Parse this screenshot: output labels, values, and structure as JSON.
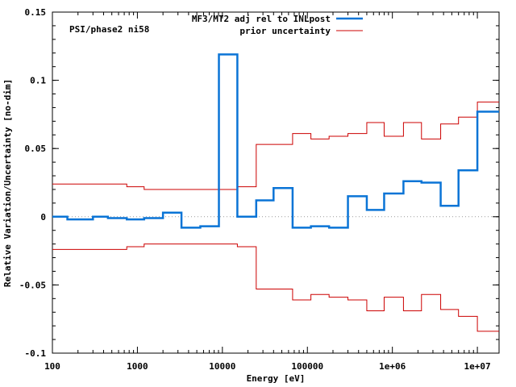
{
  "chart_data": {
    "type": "line",
    "step": true,
    "xscale": "log",
    "xlim": [
      100,
      18000000
    ],
    "ylim": [
      -0.1,
      0.15
    ],
    "xlabel": "Energy [eV]",
    "ylabel": "Relative Variation/Uncertainty [no-dim]",
    "annotation": "PSI/phase2 ni58",
    "x_tick_values": [
      100,
      1000,
      10000,
      100000,
      1000000,
      10000000
    ],
    "x_tick_labels": [
      "100",
      "1000",
      "10000",
      "100000",
      "1e+06",
      "1e+07"
    ],
    "y_tick_values": [
      -0.1,
      -0.05,
      0,
      0.05,
      0.1,
      0.15
    ],
    "y_tick_labels": [
      "-0.1",
      "-0.05",
      "0",
      "0.05",
      "0.1",
      "0.15"
    ],
    "zero_line": true,
    "legend_position": "top",
    "series": [
      {
        "name": "MF3/MT2 adj rel to INLpost",
        "color": "#0a74d6",
        "edges": [
          100,
          150,
          300,
          450,
          750,
          1200,
          2000,
          3300,
          5500,
          9100,
          15000,
          25000,
          40000,
          67000,
          110000,
          180000,
          300000,
          500000,
          800000,
          1350000,
          2200000,
          3700000,
          6000000,
          10000000,
          18000000
        ],
        "values": [
          0,
          -0.002,
          0,
          -0.001,
          -0.002,
          -0.001,
          0.003,
          -0.008,
          -0.007,
          0.119,
          0,
          0.012,
          0.021,
          -0.008,
          -0.007,
          -0.008,
          0.015,
          0.005,
          0.017,
          0.026,
          0.025,
          0.008,
          0.034,
          0.077
        ]
      },
      {
        "name": "prior uncertainty",
        "color": "#cc0000",
        "edges": [
          100,
          750,
          1200,
          15000,
          25000,
          67000,
          110000,
          180000,
          300000,
          500000,
          800000,
          1350000,
          2200000,
          3700000,
          6000000,
          10000000,
          18000000
        ],
        "values": [
          0.024,
          0.022,
          0.02,
          0.022,
          0.053,
          0.061,
          0.057,
          0.059,
          0.061,
          0.069,
          0.059,
          0.069,
          0.057,
          0.068,
          0.073,
          0.084
        ],
        "mirrored": true
      }
    ]
  }
}
